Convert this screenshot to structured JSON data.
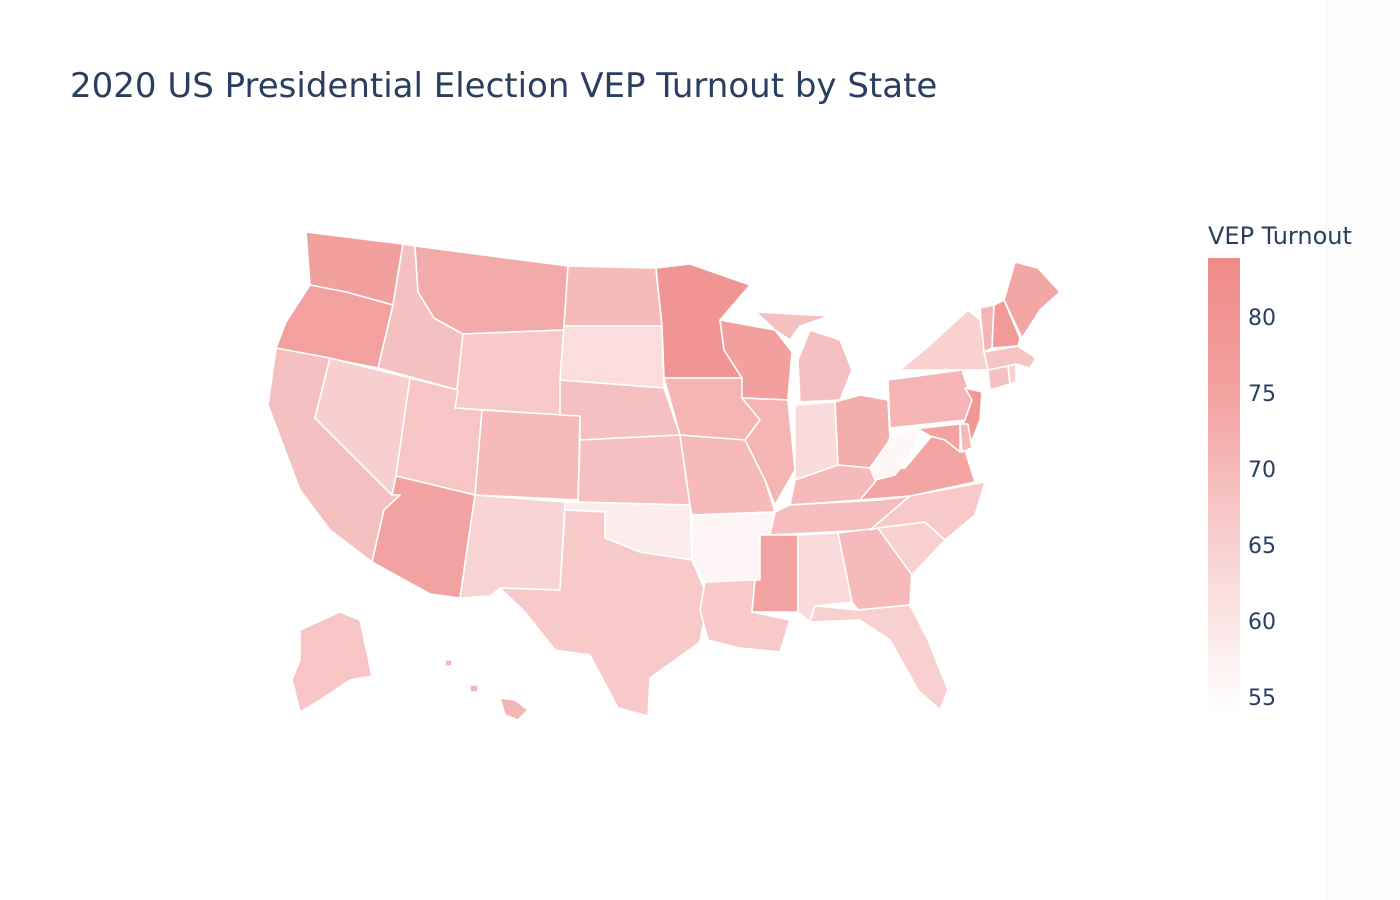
{
  "chart_data": {
    "type": "choropleth",
    "title": "2020 US Presidential Election VEP Turnout by State",
    "colorbar": {
      "title": "VEP Turnout",
      "ticks": [
        55,
        60,
        65,
        70,
        75,
        80
      ],
      "range": [
        54,
        84
      ],
      "colors": {
        "low": "#ffffff",
        "high": "#ef8b88"
      }
    },
    "states": [
      {
        "code": "WA",
        "value": 75.7
      },
      {
        "code": "OR",
        "value": 75.5
      },
      {
        "code": "CA",
        "value": 68.5
      },
      {
        "code": "NV",
        "value": 65.4
      },
      {
        "code": "ID",
        "value": 68.6
      },
      {
        "code": "MT",
        "value": 73.1
      },
      {
        "code": "WY",
        "value": 66.6
      },
      {
        "code": "UT",
        "value": 67.7
      },
      {
        "code": "AZ",
        "value": 75.0
      },
      {
        "code": "CO",
        "value": 69.9
      },
      {
        "code": "NM",
        "value": 64.2
      },
      {
        "code": "ND",
        "value": 69.9
      },
      {
        "code": "SD",
        "value": 62.2
      },
      {
        "code": "NE",
        "value": 68.6
      },
      {
        "code": "KS",
        "value": 68.8
      },
      {
        "code": "OK",
        "value": 58.4
      },
      {
        "code": "TX",
        "value": 66.7
      },
      {
        "code": "MN",
        "value": 79.9
      },
      {
        "code": "IA",
        "value": 71.1
      },
      {
        "code": "MO",
        "value": 69.9
      },
      {
        "code": "AR",
        "value": 56.1
      },
      {
        "code": "LA",
        "value": 66.6
      },
      {
        "code": "WI",
        "value": 75.8
      },
      {
        "code": "IL",
        "value": 71.1
      },
      {
        "code": "MI",
        "value": 68.5
      },
      {
        "code": "IN",
        "value": 62.5
      },
      {
        "code": "OH",
        "value": 72.5
      },
      {
        "code": "KY",
        "value": 69.9
      },
      {
        "code": "TN",
        "value": 69.2
      },
      {
        "code": "MS",
        "value": 74.9
      },
      {
        "code": "AL",
        "value": 62.6
      },
      {
        "code": "GA",
        "value": 69.9
      },
      {
        "code": "FL",
        "value": 65.1
      },
      {
        "code": "SC",
        "value": 65.2
      },
      {
        "code": "NC",
        "value": 66.7
      },
      {
        "code": "VA",
        "value": 74.3
      },
      {
        "code": "WV",
        "value": 55.9
      },
      {
        "code": "PA",
        "value": 71.0
      },
      {
        "code": "NY",
        "value": 64.9
      },
      {
        "code": "VT",
        "value": 70.8
      },
      {
        "code": "NH",
        "value": 77.7
      },
      {
        "code": "ME",
        "value": 74.0
      },
      {
        "code": "MA",
        "value": 68.0
      },
      {
        "code": "RI",
        "value": 64.6
      },
      {
        "code": "CT",
        "value": 68.6
      },
      {
        "code": "NJ",
        "value": 79.5
      },
      {
        "code": "DE",
        "value": 70.3
      },
      {
        "code": "MD",
        "value": 75.1
      },
      {
        "code": "AK",
        "value": 67.7
      },
      {
        "code": "HI",
        "value": 70.8
      }
    ]
  }
}
